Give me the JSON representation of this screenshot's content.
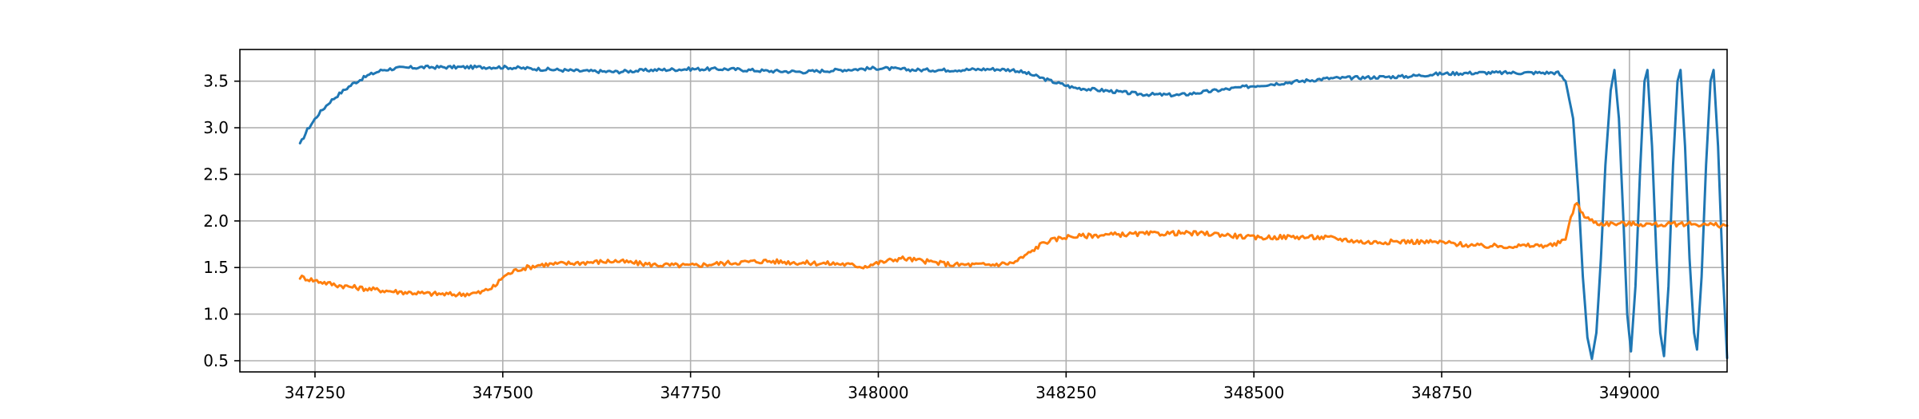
{
  "chart_data": {
    "type": "line",
    "title": "",
    "xlabel": "",
    "ylabel": "",
    "xlim": [
      347150,
      349130
    ],
    "ylim": [
      0.38,
      3.84
    ],
    "grid": true,
    "legend": "none",
    "xticks": [
      {
        "value": 347250,
        "label": "347250"
      },
      {
        "value": 347500,
        "label": "347500"
      },
      {
        "value": 347750,
        "label": "347750"
      },
      {
        "value": 348000,
        "label": "348000"
      },
      {
        "value": 348250,
        "label": "348250"
      },
      {
        "value": 348500,
        "label": "348500"
      },
      {
        "value": 348750,
        "label": "348750"
      },
      {
        "value": 349000,
        "label": "349000"
      }
    ],
    "yticks": [
      {
        "value": 0.5,
        "label": "0.5"
      },
      {
        "value": 1.0,
        "label": "1.0"
      },
      {
        "value": 1.5,
        "label": "1.5"
      },
      {
        "value": 2.0,
        "label": "2.0"
      },
      {
        "value": 2.5,
        "label": "2.5"
      },
      {
        "value": 3.0,
        "label": "3.0"
      },
      {
        "value": 3.5,
        "label": "3.5"
      }
    ],
    "series": [
      {
        "color": "#1f77b4",
        "points": [
          [
            347230,
            2.82
          ],
          [
            347240,
            2.98
          ],
          [
            347255,
            3.15
          ],
          [
            347270,
            3.28
          ],
          [
            347285,
            3.38
          ],
          [
            347300,
            3.47
          ],
          [
            347320,
            3.56
          ],
          [
            347340,
            3.62
          ],
          [
            347360,
            3.64
          ],
          [
            347400,
            3.65
          ],
          [
            347450,
            3.65
          ],
          [
            347500,
            3.65
          ],
          [
            347550,
            3.63
          ],
          [
            347600,
            3.61
          ],
          [
            347650,
            3.6
          ],
          [
            347700,
            3.62
          ],
          [
            347750,
            3.63
          ],
          [
            347800,
            3.63
          ],
          [
            347850,
            3.61
          ],
          [
            347900,
            3.6
          ],
          [
            347950,
            3.62
          ],
          [
            348000,
            3.64
          ],
          [
            348050,
            3.62
          ],
          [
            348100,
            3.62
          ],
          [
            348150,
            3.63
          ],
          [
            348180,
            3.62
          ],
          [
            348200,
            3.58
          ],
          [
            348230,
            3.5
          ],
          [
            348260,
            3.43
          ],
          [
            348300,
            3.4
          ],
          [
            348350,
            3.36
          ],
          [
            348400,
            3.35
          ],
          [
            348450,
            3.4
          ],
          [
            348500,
            3.45
          ],
          [
            348550,
            3.49
          ],
          [
            348600,
            3.53
          ],
          [
            348650,
            3.54
          ],
          [
            348700,
            3.55
          ],
          [
            348750,
            3.58
          ],
          [
            348800,
            3.59
          ],
          [
            348850,
            3.59
          ],
          [
            348880,
            3.59
          ],
          [
            348905,
            3.59
          ],
          [
            348915,
            3.5
          ],
          [
            348925,
            3.1
          ],
          [
            348932,
            2.3
          ],
          [
            348938,
            1.4
          ],
          [
            348944,
            0.75
          ],
          [
            348950,
            0.52
          ],
          [
            348956,
            0.8
          ],
          [
            348962,
            1.6
          ],
          [
            348968,
            2.6
          ],
          [
            348975,
            3.4
          ],
          [
            348980,
            3.62
          ],
          [
            348986,
            3.1
          ],
          [
            348992,
            2.0
          ],
          [
            348997,
            1.0
          ],
          [
            349002,
            0.6
          ],
          [
            349008,
            1.3
          ],
          [
            349014,
            2.5
          ],
          [
            349020,
            3.5
          ],
          [
            349024,
            3.62
          ],
          [
            349030,
            2.8
          ],
          [
            349036,
            1.6
          ],
          [
            349041,
            0.8
          ],
          [
            349046,
            0.55
          ],
          [
            349052,
            1.3
          ],
          [
            349058,
            2.6
          ],
          [
            349064,
            3.5
          ],
          [
            349068,
            3.62
          ],
          [
            349074,
            2.8
          ],
          [
            349080,
            1.6
          ],
          [
            349086,
            0.8
          ],
          [
            349090,
            0.62
          ],
          [
            349096,
            1.4
          ],
          [
            349102,
            2.6
          ],
          [
            349108,
            3.5
          ],
          [
            349112,
            3.62
          ],
          [
            349118,
            2.8
          ],
          [
            349124,
            1.5
          ],
          [
            349130,
            0.53
          ]
        ]
      },
      {
        "color": "#ff7f0e",
        "points": [
          [
            347230,
            1.4
          ],
          [
            347250,
            1.36
          ],
          [
            347280,
            1.31
          ],
          [
            347320,
            1.27
          ],
          [
            347360,
            1.24
          ],
          [
            347400,
            1.22
          ],
          [
            347440,
            1.21
          ],
          [
            347470,
            1.23
          ],
          [
            347490,
            1.3
          ],
          [
            347500,
            1.4
          ],
          [
            347520,
            1.48
          ],
          [
            347550,
            1.53
          ],
          [
            347600,
            1.55
          ],
          [
            347650,
            1.57
          ],
          [
            347700,
            1.53
          ],
          [
            347750,
            1.52
          ],
          [
            347800,
            1.55
          ],
          [
            347850,
            1.57
          ],
          [
            347900,
            1.55
          ],
          [
            347950,
            1.54
          ],
          [
            347980,
            1.51
          ],
          [
            348000,
            1.55
          ],
          [
            348030,
            1.6
          ],
          [
            348060,
            1.57
          ],
          [
            348100,
            1.53
          ],
          [
            348150,
            1.53
          ],
          [
            348180,
            1.55
          ],
          [
            348200,
            1.65
          ],
          [
            348220,
            1.77
          ],
          [
            348250,
            1.83
          ],
          [
            348300,
            1.85
          ],
          [
            348350,
            1.86
          ],
          [
            348400,
            1.87
          ],
          [
            348450,
            1.86
          ],
          [
            348500,
            1.82
          ],
          [
            348550,
            1.83
          ],
          [
            348600,
            1.82
          ],
          [
            348650,
            1.77
          ],
          [
            348700,
            1.78
          ],
          [
            348750,
            1.77
          ],
          [
            348800,
            1.73
          ],
          [
            348850,
            1.73
          ],
          [
            348900,
            1.74
          ],
          [
            348915,
            1.8
          ],
          [
            348922,
            2.05
          ],
          [
            348930,
            2.2
          ],
          [
            348940,
            2.04
          ],
          [
            348960,
            1.97
          ],
          [
            349000,
            1.97
          ],
          [
            349040,
            1.96
          ],
          [
            349080,
            1.97
          ],
          [
            349130,
            1.95
          ]
        ]
      }
    ]
  }
}
